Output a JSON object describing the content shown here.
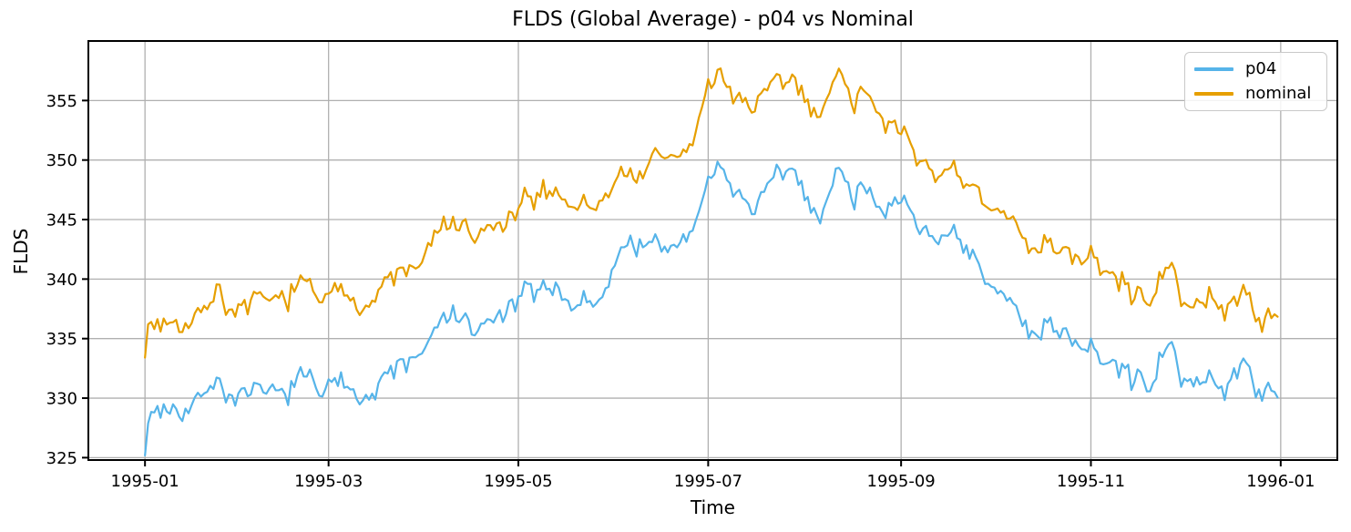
{
  "figure": {
    "background": "#ffffff",
    "text_color": "#000000",
    "grid_color": "#b0b0b0",
    "spine_color": "#000000"
  },
  "chart_data": {
    "type": "line",
    "title": "FLDS (Global Average) - p04 vs Nominal",
    "xlabel": "Time",
    "ylabel": "FLDS",
    "grid": true,
    "legend_position": "upper right",
    "x_tick_labels": [
      "1995-01",
      "1995-03",
      "1995-05",
      "1995-07",
      "1995-09",
      "1995-11",
      "1996-01"
    ],
    "x_tick_days": [
      0,
      59,
      120,
      181,
      243,
      304,
      365
    ],
    "y_ticks": [
      325,
      330,
      335,
      340,
      345,
      350,
      355
    ],
    "xlim_days": [
      -18.2,
      383.2
    ],
    "ylim": [
      324.8,
      360.0
    ],
    "n_points": 365,
    "time_start": "1995-01-01",
    "time_end": "1995-12-31",
    "value_clip": [
      325.15,
      358.55
    ],
    "noise": {
      "seed": 7,
      "ar": 0.72,
      "ar_scale": 1.7,
      "daily": 1.0,
      "per_series": 0.3
    },
    "series": [
      {
        "name": "p04",
        "color": "#56B4E9",
        "line_width": 2.2,
        "anchors": [
          [
            0,
            326.5
          ],
          [
            2,
            328.6
          ],
          [
            6,
            329.3
          ],
          [
            12,
            329.9
          ],
          [
            18,
            330.2
          ],
          [
            23,
            332.2
          ],
          [
            27,
            330.4
          ],
          [
            34,
            330.3
          ],
          [
            41,
            329.2
          ],
          [
            47,
            331.0
          ],
          [
            52,
            331.4
          ],
          [
            59,
            330.7
          ],
          [
            66,
            331.3
          ],
          [
            73,
            330.6
          ],
          [
            80,
            332.0
          ],
          [
            86,
            333.2
          ],
          [
            90,
            334.3
          ],
          [
            95,
            335.8
          ],
          [
            100,
            337.2
          ],
          [
            106,
            335.5
          ],
          [
            112,
            336.3
          ],
          [
            120,
            337.6
          ],
          [
            126,
            338.9
          ],
          [
            133,
            339.3
          ],
          [
            140,
            337.9
          ],
          [
            147,
            338.3
          ],
          [
            151,
            341.0
          ],
          [
            155,
            343.4
          ],
          [
            160,
            343.2
          ],
          [
            166,
            342.0
          ],
          [
            172,
            343.2
          ],
          [
            177,
            345.0
          ],
          [
            181,
            347.6
          ],
          [
            184,
            348.9
          ],
          [
            189,
            347.6
          ],
          [
            196,
            346.4
          ],
          [
            202,
            347.9
          ],
          [
            207,
            348.3
          ],
          [
            212,
            347.0
          ],
          [
            217,
            346.4
          ],
          [
            223,
            349.2
          ],
          [
            228,
            347.7
          ],
          [
            233,
            347.9
          ],
          [
            238,
            347.0
          ],
          [
            243,
            345.6
          ],
          [
            249,
            344.6
          ],
          [
            255,
            344.0
          ],
          [
            261,
            342.5
          ],
          [
            266,
            341.2
          ],
          [
            273,
            338.3
          ],
          [
            279,
            337.3
          ],
          [
            285,
            336.4
          ],
          [
            291,
            336.9
          ],
          [
            298,
            335.3
          ],
          [
            304,
            333.6
          ],
          [
            310,
            332.5
          ],
          [
            317,
            331.7
          ],
          [
            322,
            331.5
          ],
          [
            328,
            334.0
          ],
          [
            331,
            332.9
          ],
          [
            334,
            331.9
          ],
          [
            340,
            331.1
          ],
          [
            346,
            330.7
          ],
          [
            350,
            332.0
          ],
          [
            353,
            333.2
          ],
          [
            356,
            331.2
          ],
          [
            360,
            330.9
          ],
          [
            364,
            329.2
          ]
        ]
      },
      {
        "name": "nominal",
        "color": "#E69F00",
        "line_width": 2.2,
        "anchors": [
          [
            0,
            334.9
          ],
          [
            2,
            336.1
          ],
          [
            6,
            336.6
          ],
          [
            12,
            337.1
          ],
          [
            18,
            337.3
          ],
          [
            23,
            339.8
          ],
          [
            27,
            337.6
          ],
          [
            34,
            337.8
          ],
          [
            41,
            336.9
          ],
          [
            47,
            338.8
          ],
          [
            52,
            339.1
          ],
          [
            59,
            338.2
          ],
          [
            66,
            338.9
          ],
          [
            73,
            338.4
          ],
          [
            80,
            339.8
          ],
          [
            86,
            341.0
          ],
          [
            90,
            342.2
          ],
          [
            95,
            343.5
          ],
          [
            100,
            344.8
          ],
          [
            106,
            343.3
          ],
          [
            112,
            344.1
          ],
          [
            120,
            345.1
          ],
          [
            126,
            346.8
          ],
          [
            133,
            347.4
          ],
          [
            140,
            346.1
          ],
          [
            147,
            346.4
          ],
          [
            151,
            347.9
          ],
          [
            155,
            349.3
          ],
          [
            160,
            349.4
          ],
          [
            166,
            349.7
          ],
          [
            172,
            350.6
          ],
          [
            177,
            352.3
          ],
          [
            181,
            355.5
          ],
          [
            184,
            356.7
          ],
          [
            189,
            355.6
          ],
          [
            196,
            354.7
          ],
          [
            202,
            356.0
          ],
          [
            207,
            355.9
          ],
          [
            212,
            354.9
          ],
          [
            217,
            355.1
          ],
          [
            223,
            357.2
          ],
          [
            228,
            355.6
          ],
          [
            233,
            355.9
          ],
          [
            238,
            354.2
          ],
          [
            243,
            351.5
          ],
          [
            249,
            350.2
          ],
          [
            255,
            349.4
          ],
          [
            261,
            347.9
          ],
          [
            266,
            346.8
          ],
          [
            273,
            345.1
          ],
          [
            279,
            344.3
          ],
          [
            285,
            343.4
          ],
          [
            291,
            343.6
          ],
          [
            298,
            342.5
          ],
          [
            304,
            341.2
          ],
          [
            310,
            340.0
          ],
          [
            317,
            338.7
          ],
          [
            322,
            338.4
          ],
          [
            328,
            340.9
          ],
          [
            331,
            339.6
          ],
          [
            334,
            338.2
          ],
          [
            340,
            337.7
          ],
          [
            346,
            337.5
          ],
          [
            350,
            338.5
          ],
          [
            353,
            339.0
          ],
          [
            356,
            337.6
          ],
          [
            360,
            337.0
          ],
          [
            364,
            335.6
          ]
        ]
      }
    ]
  }
}
